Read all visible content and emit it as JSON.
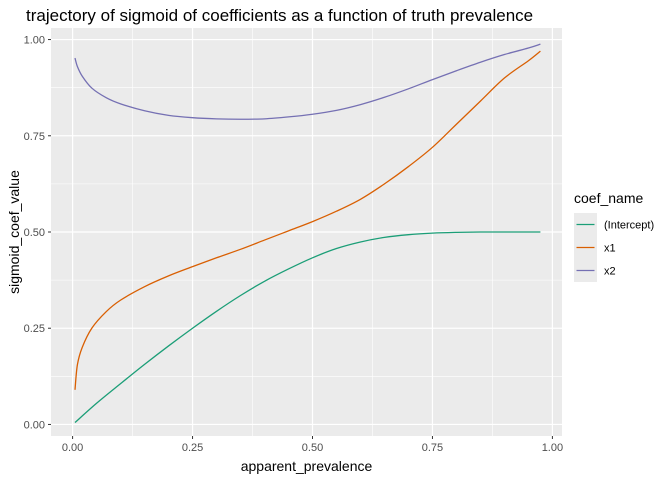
{
  "chart_data": {
    "type": "line",
    "title": "trajectory of sigmoid of coefficients as a function of truth prevalence",
    "xlabel": "apparent_prevalence",
    "ylabel": "sigmoid_coef_value",
    "xlim": [
      -0.045,
      1.02
    ],
    "ylim": [
      -0.03,
      1.03
    ],
    "x_ticks": [
      0.0,
      0.25,
      0.5,
      0.75,
      1.0
    ],
    "x_tick_labels": [
      "0.00",
      "0.25",
      "0.50",
      "0.75",
      "1.00"
    ],
    "y_ticks": [
      0.0,
      0.25,
      0.5,
      0.75,
      1.0
    ],
    "y_tick_labels": [
      "0.00",
      "0.25",
      "0.50",
      "0.75",
      "1.00"
    ],
    "grid": true,
    "legend": {
      "title": "coef_name",
      "placement": "right",
      "entries": [
        "(Intercept)",
        "x1",
        "x2"
      ]
    },
    "series": [
      {
        "name": "(Intercept)",
        "color": "#1b9e77",
        "x": [
          0.005,
          0.05,
          0.1,
          0.15,
          0.2,
          0.25,
          0.3,
          0.35,
          0.4,
          0.45,
          0.5,
          0.55,
          0.6,
          0.65,
          0.7,
          0.75,
          0.8,
          0.85,
          0.9,
          0.95,
          0.975
        ],
        "y": [
          0.005,
          0.055,
          0.106,
          0.156,
          0.204,
          0.25,
          0.294,
          0.335,
          0.372,
          0.404,
          0.433,
          0.457,
          0.474,
          0.486,
          0.493,
          0.497,
          0.499,
          0.5,
          0.5,
          0.5,
          0.5
        ]
      },
      {
        "name": "x1",
        "color": "#d95f02",
        "x": [
          0.005,
          0.01,
          0.02,
          0.04,
          0.07,
          0.1,
          0.15,
          0.2,
          0.25,
          0.3,
          0.35,
          0.4,
          0.45,
          0.5,
          0.55,
          0.6,
          0.65,
          0.7,
          0.75,
          0.8,
          0.85,
          0.9,
          0.95,
          0.975
        ],
        "y": [
          0.09,
          0.155,
          0.2,
          0.25,
          0.293,
          0.323,
          0.358,
          0.386,
          0.41,
          0.433,
          0.455,
          0.479,
          0.503,
          0.527,
          0.554,
          0.585,
          0.625,
          0.67,
          0.72,
          0.78,
          0.84,
          0.9,
          0.945,
          0.97
        ]
      },
      {
        "name": "x2",
        "color": "#7570b3",
        "x": [
          0.005,
          0.01,
          0.02,
          0.04,
          0.07,
          0.1,
          0.15,
          0.2,
          0.25,
          0.3,
          0.35,
          0.4,
          0.45,
          0.5,
          0.55,
          0.6,
          0.65,
          0.7,
          0.75,
          0.8,
          0.85,
          0.9,
          0.95,
          0.975
        ],
        "y": [
          0.952,
          0.93,
          0.905,
          0.874,
          0.849,
          0.833,
          0.815,
          0.803,
          0.797,
          0.794,
          0.793,
          0.794,
          0.799,
          0.806,
          0.816,
          0.831,
          0.85,
          0.872,
          0.896,
          0.919,
          0.941,
          0.961,
          0.978,
          0.988
        ]
      }
    ]
  }
}
